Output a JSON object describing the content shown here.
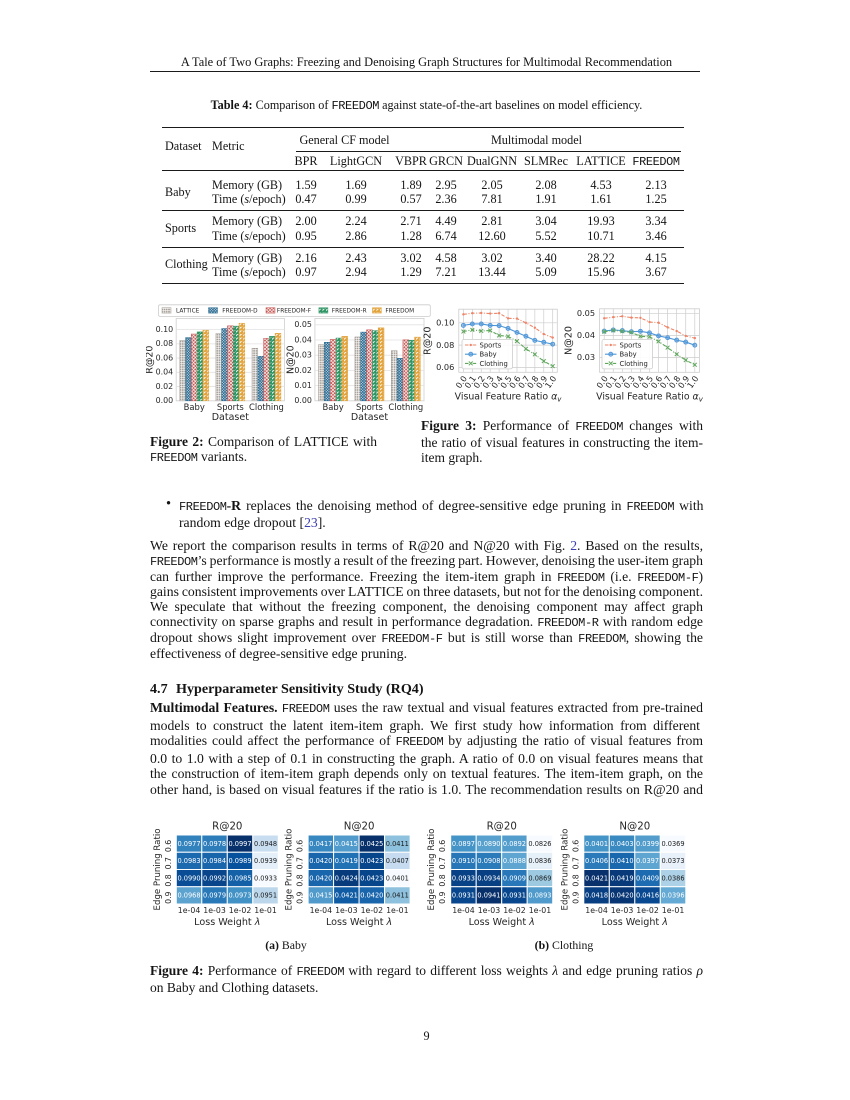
{
  "colors": {
    "link_blue": "#3c3fae",
    "bar_gray": "#a19a92",
    "bar_blue": "#26688f",
    "bar_red": "#c4524e",
    "bar_green": "#2f9464",
    "bar_orange": "#e2a33c",
    "line_sports": "#ee8468",
    "line_baby": "#4c95d8",
    "line_clothing": "#5fa75c",
    "grid_light": "#e2e2e2",
    "grid_mid": "#cccccc",
    "fig_text": "#262626"
  },
  "header": {
    "running_title": "A Tale of Two Graphs: Freezing and Denoising Graph Structures for Multimodal Recommendation"
  },
  "page_number": "9",
  "table": {
    "caption": [
      {
        "t": "Table 4:",
        "s": "bold"
      },
      {
        "t": " Comparison of "
      },
      {
        "t": "FREEDOM",
        "s": "mono"
      },
      {
        "t": " against state-of-the-art baselines on model efficiency."
      }
    ],
    "col_dataset": "Dataset",
    "col_metric": "Metric",
    "group1": "General CF model",
    "group2": "Multimodal model",
    "columns": [
      "BPR",
      "LightGCN",
      "VBPR",
      "GRCN",
      "DualGNN",
      "SLMRec",
      "LATTICE",
      "FREEDOM"
    ],
    "metric_memory": "Memory (GB)",
    "metric_time_pre": "Time (",
    "metric_time_s": "s",
    "metric_time_post": "/epoch)",
    "rows": [
      {
        "dataset": "Baby",
        "memory": [
          "1.59",
          "1.69",
          "1.89",
          "2.95",
          "2.05",
          "2.08",
          "4.53",
          "2.13"
        ],
        "time": [
          "0.47",
          "0.99",
          "0.57",
          "2.36",
          "7.81",
          "1.91",
          "1.61",
          "1.25"
        ]
      },
      {
        "dataset": "Sports",
        "memory": [
          "2.00",
          "2.24",
          "2.71",
          "4.49",
          "2.81",
          "3.04",
          "19.93",
          "3.34"
        ],
        "time": [
          "0.95",
          "2.86",
          "1.28",
          "6.74",
          "12.60",
          "5.52",
          "10.71",
          "3.46"
        ]
      },
      {
        "dataset": "Clothing",
        "memory": [
          "2.16",
          "2.43",
          "3.02",
          "4.58",
          "3.02",
          "3.40",
          "28.22",
          "4.15"
        ],
        "time": [
          "0.97",
          "2.94",
          "1.29",
          "7.21",
          "13.44",
          "5.09",
          "15.96",
          "3.67"
        ]
      }
    ]
  },
  "chart_data": [
    {
      "id": "fig2",
      "type": "bar",
      "legend": [
        "LATTICE",
        "FREEDOM-D",
        "FREEDOM-F",
        "FREEDOM-R",
        "FREEDOM"
      ],
      "categories": [
        "Baby",
        "Sports",
        "Clothing"
      ],
      "xlabel": "Dataset",
      "panels": [
        {
          "ylabel": "R@20",
          "yticks": [
            "0.00",
            "0.02",
            "0.04",
            "0.06",
            "0.08",
            "0.10"
          ],
          "ymax": 0.1157,
          "series": [
            {
              "name": "LATTICE",
              "values": [
                0.0848,
                0.0945,
                0.0738
              ]
            },
            {
              "name": "FREEDOM-D",
              "values": [
                0.0888,
                0.1015,
                0.0625
              ]
            },
            {
              "name": "FREEDOM-F",
              "values": [
                0.0938,
                0.1053,
                0.0876
              ]
            },
            {
              "name": "FREEDOM-R",
              "values": [
                0.0968,
                0.1049,
                0.0905
              ]
            },
            {
              "name": "FREEDOM",
              "values": [
                0.0992,
                0.109,
                0.0948
              ]
            }
          ]
        },
        {
          "ylabel": "N@20",
          "yticks": [
            "0.00",
            "0.01",
            "0.02",
            "0.03",
            "0.04",
            "0.05"
          ],
          "ymax": 0.0542,
          "series": [
            {
              "name": "LATTICE",
              "values": [
                0.037,
                0.042,
                0.033
              ]
            },
            {
              "name": "FREEDOM-D",
              "values": [
                0.0385,
                0.0452,
                0.028
              ]
            },
            {
              "name": "FREEDOM-F",
              "values": [
                0.0405,
                0.0467,
                0.0401
              ]
            },
            {
              "name": "FREEDOM-R",
              "values": [
                0.0413,
                0.0462,
                0.0398
              ]
            },
            {
              "name": "FREEDOM",
              "values": [
                0.0424,
                0.048,
                0.0419
              ]
            }
          ]
        }
      ]
    },
    {
      "id": "fig3",
      "type": "line",
      "x": [
        0.0,
        0.1,
        0.2,
        0.3,
        0.4,
        0.5,
        0.6,
        0.7,
        0.8,
        0.9,
        1.0
      ],
      "xticks": [
        "0.0",
        "0.1",
        "0.2",
        "0.3",
        "0.4",
        "0.5",
        "0.6",
        "0.7",
        "0.8",
        "0.9",
        "1.0"
      ],
      "xlabel": "Visual Feature Ratio ",
      "xlabel_math": "α",
      "xlabel_sub": "v",
      "legend": [
        "Sports",
        "Baby",
        "Clothing"
      ],
      "panels": [
        {
          "ylabel": "R@20",
          "yticks": [
            0.06,
            0.08,
            0.1
          ],
          "ytick_labels": [
            "0.06",
            "0.08",
            "0.10"
          ],
          "ymin": 0.0557,
          "ymax": 0.1122,
          "series": [
            {
              "name": "Sports",
              "values": [
                0.1076,
                0.1086,
                0.1088,
                0.1083,
                0.1086,
                0.104,
                0.1038,
                0.1,
                0.0956,
                0.0899,
                0.0868
              ]
            },
            {
              "name": "Baby",
              "values": [
                0.0977,
                0.099,
                0.099,
                0.0977,
                0.0975,
                0.095,
                0.0914,
                0.088,
                0.0843,
                0.0826,
                0.0809
              ]
            },
            {
              "name": "Clothing",
              "values": [
                0.0922,
                0.0937,
                0.0927,
                0.0931,
                0.0887,
                0.0878,
                0.0836,
                0.0767,
                0.0717,
                0.0657,
                0.0612
              ]
            }
          ]
        },
        {
          "ylabel": "N@20",
          "yticks": [
            0.03,
            0.04,
            0.05
          ],
          "ytick_labels": [
            "0.03",
            "0.04",
            "0.05"
          ],
          "ymin": 0.0233,
          "ymax": 0.0521,
          "series": [
            {
              "name": "Sports",
              "values": [
                0.0478,
                0.0483,
                0.0487,
                0.0481,
                0.048,
                0.0461,
                0.0458,
                0.0437,
                0.042,
                0.0398,
                0.0388
              ]
            },
            {
              "name": "Baby",
              "values": [
                0.042,
                0.0425,
                0.0422,
                0.0417,
                0.0419,
                0.0412,
                0.0398,
                0.039,
                0.0379,
                0.037,
                0.0356
              ]
            },
            {
              "name": "Clothing",
              "values": [
                0.0417,
                0.0423,
                0.0419,
                0.0414,
                0.0396,
                0.0394,
                0.0373,
                0.0345,
                0.0315,
                0.0288,
                0.0267
              ]
            }
          ]
        }
      ]
    },
    {
      "id": "fig4",
      "type": "heatmap",
      "xlabel": "Loss Weight ",
      "xlabel_math": "λ",
      "ylabel": "Edge Pruning Ratio",
      "xticks": [
        "1e-04",
        "1e-03",
        "1e-02",
        "1e-01"
      ],
      "yticks": [
        "0.6",
        "0.7",
        "0.8",
        "0.9"
      ],
      "panels": [
        {
          "title": "R@20",
          "group": "a",
          "values": [
            [
              0.0977,
              0.0978,
              0.0997,
              0.0948
            ],
            [
              0.0983,
              0.0984,
              0.0989,
              0.0939
            ],
            [
              0.099,
              0.0992,
              0.0985,
              0.0933
            ],
            [
              0.0968,
              0.0979,
              0.0973,
              0.0951
            ]
          ]
        },
        {
          "title": "N@20",
          "group": "a",
          "values": [
            [
              0.0417,
              0.0415,
              0.0425,
              0.0411
            ],
            [
              0.042,
              0.0419,
              0.0423,
              0.0407
            ],
            [
              0.042,
              0.0424,
              0.0423,
              0.0401
            ],
            [
              0.0415,
              0.0421,
              0.042,
              0.0411
            ]
          ]
        },
        {
          "title": "R@20",
          "group": "b",
          "values": [
            [
              0.0897,
              0.089,
              0.0892,
              0.0826
            ],
            [
              0.091,
              0.0908,
              0.0888,
              0.0836
            ],
            [
              0.0933,
              0.0934,
              0.0909,
              0.0869
            ],
            [
              0.0931,
              0.0941,
              0.0931,
              0.0893
            ]
          ]
        },
        {
          "title": "N@20",
          "group": "b",
          "values": [
            [
              0.0401,
              0.0403,
              0.0399,
              0.0369
            ],
            [
              0.0406,
              0.041,
              0.0397,
              0.0373
            ],
            [
              0.0421,
              0.0419,
              0.0409,
              0.0386
            ],
            [
              0.0418,
              0.042,
              0.0416,
              0.0396
            ]
          ]
        }
      ]
    }
  ],
  "fig2_caption": {
    "lines": [
      {
        "stretch": true,
        "segments": [
          {
            "t": "Figure 2:",
            "s": "bold"
          },
          {
            "t": " Comparison of LATTICE with"
          }
        ]
      },
      {
        "stretch": false,
        "segments": [
          {
            "t": "FREEDOM",
            "s": "mono"
          },
          {
            "t": " variants."
          }
        ]
      }
    ]
  },
  "fig3_caption": {
    "lines": [
      {
        "stretch": true,
        "segments": [
          {
            "t": "Figure 3:",
            "s": "bold"
          },
          {
            "t": " Performance of "
          },
          {
            "t": "FREEDOM",
            "s": "mono"
          },
          {
            "t": " changes with"
          }
        ]
      },
      {
        "stretch": true,
        "segments": [
          {
            "t": "the ratio of visual features in constructing the item-"
          }
        ]
      },
      {
        "stretch": false,
        "segments": [
          {
            "t": "item graph."
          }
        ]
      }
    ]
  },
  "bullet_item": {
    "lines": [
      {
        "stretch": true,
        "segments": [
          {
            "t": "FREEDOM",
            "s": "mono"
          },
          {
            "t": "-R",
            "s": "bold"
          },
          {
            "t": " replaces the denoising method of degree-sensitive edge pruning in "
          },
          {
            "t": "FREEDOM",
            "s": "mono"
          },
          {
            "t": " with"
          }
        ]
      },
      {
        "stretch": false,
        "segments": [
          {
            "t": "random edge dropout ["
          },
          {
            "t": "23",
            "s": "link"
          },
          {
            "t": "]."
          }
        ]
      }
    ]
  },
  "para1": {
    "lines": [
      {
        "stretch": true,
        "segments": [
          {
            "t": "We report the comparison results in terms of R@20 and N@20 with Fig. "
          },
          {
            "t": "2",
            "s": "link"
          },
          {
            "t": ". Based on the results,"
          }
        ]
      },
      {
        "stretch": true,
        "segments": [
          {
            "t": "FREEDOM",
            "s": "mono"
          },
          {
            "t": "’s performance is mostly a result of the freezing part. However, denoising the user-item graph"
          }
        ]
      },
      {
        "stretch": true,
        "segments": [
          {
            "t": "can further improve the performance. Freezing the item-item graph in "
          },
          {
            "t": "FREEDOM",
            "s": "mono"
          },
          {
            "t": " (i.e. "
          },
          {
            "t": "FREEDOM-F",
            "s": "mono"
          },
          {
            "t": ")"
          }
        ]
      },
      {
        "stretch": true,
        "segments": [
          {
            "t": "gains consistent improvements over LATTICE on three datasets, but not for the denoising component."
          }
        ]
      },
      {
        "stretch": true,
        "segments": [
          {
            "t": "We speculate that without the freezing component, the denoising component may affect graph"
          }
        ]
      },
      {
        "stretch": true,
        "segments": [
          {
            "t": "connectivity on sparse graphs and result in performance degradation. "
          },
          {
            "t": "FREEDOM-R",
            "s": "mono"
          },
          {
            "t": " with random edge"
          }
        ]
      },
      {
        "stretch": true,
        "segments": [
          {
            "t": "dropout shows slight improvement over "
          },
          {
            "t": "FREEDOM-F",
            "s": "mono"
          },
          {
            "t": " but is still worse than "
          },
          {
            "t": "FREEDOM",
            "s": "mono"
          },
          {
            "t": ", showing the"
          }
        ]
      },
      {
        "stretch": false,
        "segments": [
          {
            "t": "effectiveness of degree-sensitive edge pruning."
          }
        ]
      }
    ]
  },
  "section": {
    "number": "4.7",
    "title": "Hyperparameter Sensitivity Study (RQ4)"
  },
  "para2": {
    "lines": [
      {
        "stretch": true,
        "segments": [
          {
            "t": "Multimodal Features.",
            "s": "bold"
          },
          {
            "t": " "
          },
          {
            "t": "FREEDOM",
            "s": "mono"
          },
          {
            "t": " uses the raw textual and visual features extracted from pre-trained"
          }
        ]
      },
      {
        "stretch": true,
        "segments": [
          {
            "t": "models to construct the latent item-item graph.  We first study how information from different"
          }
        ]
      },
      {
        "stretch": true,
        "segments": [
          {
            "t": "modalities could affect the performance of "
          },
          {
            "t": "FREEDOM",
            "s": "mono"
          },
          {
            "t": " by adjusting the ratio of visual features from"
          }
        ]
      },
      {
        "stretch": true,
        "segments": [
          {
            "t": "0.0 to 1.0 with a step of 0.1 in constructing the graph. A ratio of 0.0 on visual features means that"
          }
        ]
      },
      {
        "stretch": true,
        "segments": [
          {
            "t": "the construction of item-item graph depends only on textual features. The item-item graph, on the"
          }
        ]
      },
      {
        "stretch": true,
        "segments": [
          {
            "t": "other hand, is based on visual features if the ratio is 1.0. The recommendation results on R@20 and"
          }
        ]
      }
    ]
  },
  "subcap_a": [
    {
      "t": "(a)",
      "s": "bold"
    },
    {
      "t": " Baby"
    }
  ],
  "subcap_b": [
    {
      "t": "(b)",
      "s": "bold"
    },
    {
      "t": " Clothing"
    }
  ],
  "fig4_caption": {
    "lines": [
      {
        "stretch": true,
        "segments": [
          {
            "t": "Figure 4:",
            "s": "bold"
          },
          {
            "t": " Performance of "
          },
          {
            "t": "FREEDOM",
            "s": "mono"
          },
          {
            "t": " with regard to different loss weights "
          },
          {
            "t": "λ",
            "s": "it"
          },
          {
            "t": " and edge pruning ratios "
          },
          {
            "t": "ρ",
            "s": "it"
          }
        ]
      },
      {
        "stretch": false,
        "segments": [
          {
            "t": "on Baby and Clothing datasets."
          }
        ]
      }
    ]
  }
}
